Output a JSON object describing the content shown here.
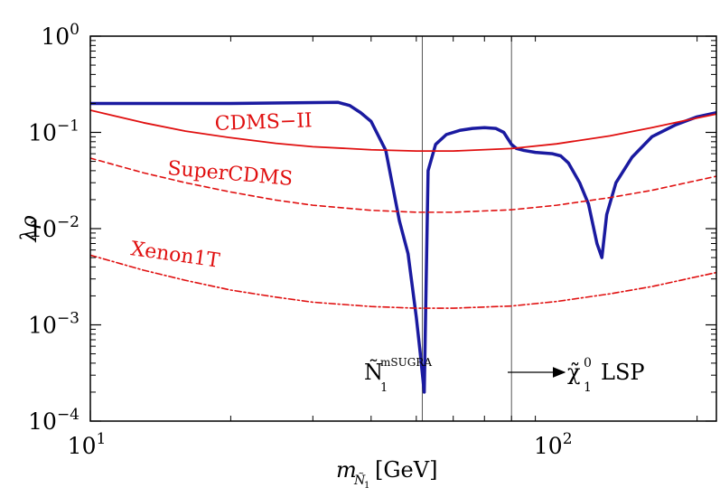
{
  "chart_data": {
    "type": "line",
    "xlabel": "m_{Ñ₁} [GeV]",
    "ylabel": "λρ",
    "xscale": "log",
    "yscale": "log",
    "xlim": [
      10,
      220
    ],
    "ylim": [
      0.0001,
      1
    ],
    "x_ticks": [
      {
        "value": 10,
        "base": "10",
        "exp": "1"
      },
      {
        "value": 100,
        "base": "10",
        "exp": "2"
      }
    ],
    "y_ticks": [
      {
        "value": 1,
        "base": "10",
        "exp": "0"
      },
      {
        "value": 0.1,
        "base": "10",
        "exp": "−1"
      },
      {
        "value": 0.01,
        "base": "10",
        "exp": "−2"
      },
      {
        "value": 0.001,
        "base": "10",
        "exp": "−3"
      },
      {
        "value": 0.0001,
        "base": "10",
        "exp": "−4"
      }
    ],
    "series": [
      {
        "color": "#1a1aa0",
        "style": "solid",
        "width": 3.5,
        "points": [
          [
            10,
            0.2
          ],
          [
            20,
            0.2
          ],
          [
            34,
            0.205
          ],
          [
            36,
            0.19
          ],
          [
            38,
            0.16
          ],
          [
            40,
            0.13
          ],
          [
            43,
            0.065
          ],
          [
            46,
            0.012
          ],
          [
            48,
            0.0055
          ],
          [
            50,
            0.0012
          ],
          [
            51,
            0.0005
          ],
          [
            52,
            0.0002
          ],
          [
            53,
            0.04
          ],
          [
            55,
            0.075
          ],
          [
            58,
            0.095
          ],
          [
            62,
            0.105
          ],
          [
            66,
            0.11
          ],
          [
            70,
            0.112
          ],
          [
            74,
            0.11
          ],
          [
            77,
            0.1
          ],
          [
            80,
            0.075
          ],
          [
            82,
            0.068
          ],
          [
            85,
            0.065
          ],
          [
            90,
            0.062
          ],
          [
            98,
            0.06
          ],
          [
            102,
            0.057
          ],
          [
            106,
            0.048
          ],
          [
            112,
            0.03
          ],
          [
            117,
            0.018
          ],
          [
            122,
            0.007
          ],
          [
            125,
            0.005
          ],
          [
            128,
            0.014
          ],
          [
            134,
            0.03
          ],
          [
            145,
            0.055
          ],
          [
            160,
            0.09
          ],
          [
            180,
            0.12
          ],
          [
            200,
            0.145
          ],
          [
            220,
            0.16
          ]
        ]
      },
      {
        "name": "CDMS−II",
        "color": "#e01010",
        "style": "solid",
        "width": 1.8,
        "points": [
          [
            10,
            0.17
          ],
          [
            13,
            0.126
          ],
          [
            16,
            0.103
          ],
          [
            20,
            0.088
          ],
          [
            25,
            0.077
          ],
          [
            30,
            0.071
          ],
          [
            40,
            0.066
          ],
          [
            50,
            0.064
          ],
          [
            60,
            0.064
          ],
          [
            80,
            0.068
          ],
          [
            100,
            0.076
          ],
          [
            130,
            0.092
          ],
          [
            160,
            0.112
          ],
          [
            190,
            0.134
          ],
          [
            220,
            0.155
          ]
        ]
      },
      {
        "name": "SuperCDMS",
        "color": "#e01010",
        "style": "dashed",
        "width": 1.6,
        "points": [
          [
            10,
            0.054
          ],
          [
            13,
            0.038
          ],
          [
            16,
            0.03
          ],
          [
            20,
            0.024
          ],
          [
            25,
            0.0198
          ],
          [
            30,
            0.0175
          ],
          [
            40,
            0.0155
          ],
          [
            50,
            0.0148
          ],
          [
            60,
            0.0148
          ],
          [
            80,
            0.0157
          ],
          [
            100,
            0.0175
          ],
          [
            130,
            0.021
          ],
          [
            160,
            0.025
          ],
          [
            190,
            0.03
          ],
          [
            220,
            0.035
          ]
        ]
      },
      {
        "name": "Xenon1T",
        "color": "#e01010",
        "style": "dashdot",
        "width": 1.6,
        "points": [
          [
            10,
            0.0053
          ],
          [
            13,
            0.0037
          ],
          [
            16,
            0.0029
          ],
          [
            20,
            0.0023
          ],
          [
            25,
            0.00194
          ],
          [
            30,
            0.00172
          ],
          [
            40,
            0.00155
          ],
          [
            50,
            0.00149
          ],
          [
            60,
            0.00149
          ],
          [
            80,
            0.00157
          ],
          [
            100,
            0.00175
          ],
          [
            130,
            0.0021
          ],
          [
            160,
            0.0025
          ],
          [
            190,
            0.003
          ],
          [
            220,
            0.0035
          ]
        ]
      }
    ],
    "vlines": [
      51.5,
      80
    ],
    "annotations": {
      "mSUGRA": {
        "base": "Ñ",
        "sub": "1",
        "sup": "mSUGRA"
      },
      "lsp": {
        "base": "χ̃",
        "sub": "1",
        "sup": "0",
        "suffix": "LSP"
      }
    }
  }
}
